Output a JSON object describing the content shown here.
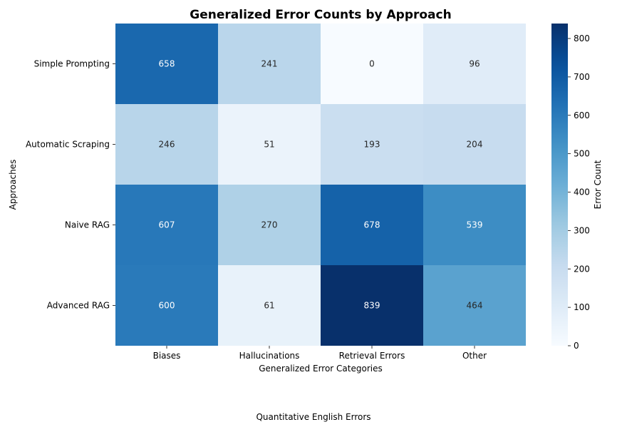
{
  "chart_data": {
    "type": "heatmap",
    "title": "Generalized Error Counts by Approach",
    "xlabel": "Generalized Error Categories",
    "ylabel": "Approaches",
    "x_categories": [
      "Biases",
      "Hallucinations",
      "Retrieval Errors",
      "Other"
    ],
    "y_categories": [
      "Simple Prompting",
      "Automatic Scraping",
      "Naive RAG",
      "Advanced RAG"
    ],
    "values": [
      [
        658,
        241,
        0,
        96
      ],
      [
        246,
        51,
        193,
        204
      ],
      [
        607,
        270,
        678,
        539
      ],
      [
        600,
        61,
        839,
        464
      ]
    ],
    "colormap": "Blues",
    "vmin": 0,
    "vmax": 839,
    "annotations": true,
    "colorbar": {
      "label": "Error Count",
      "ticks": [
        0,
        100,
        200,
        300,
        400,
        500,
        600,
        700,
        800
      ]
    }
  },
  "caption": "Quantitative English Errors"
}
